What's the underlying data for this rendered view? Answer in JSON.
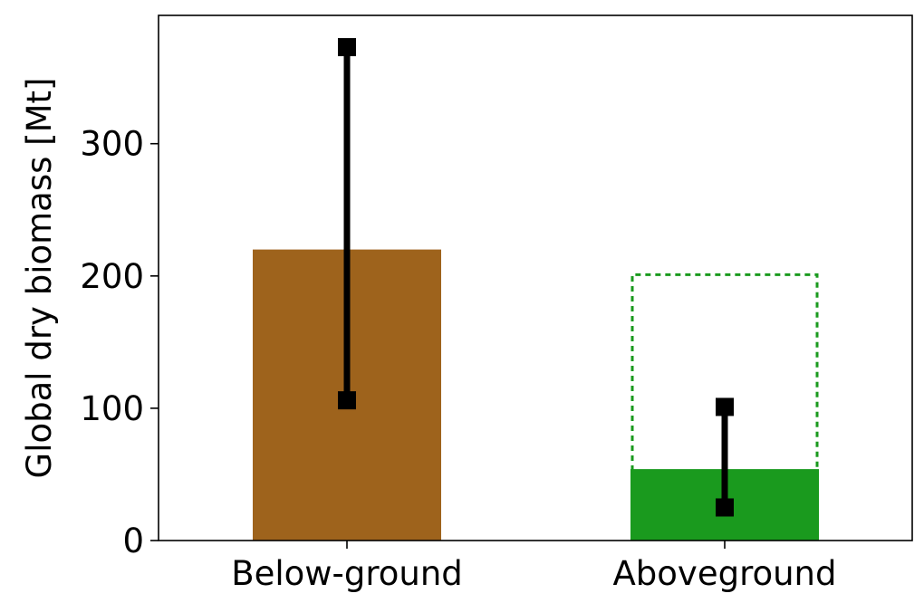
{
  "chart_data": {
    "type": "bar",
    "title": "",
    "xlabel": "",
    "ylabel": "Global dry biomass [Mt]",
    "ylim": [
      0,
      397
    ],
    "yticks": [
      0,
      100,
      200,
      300
    ],
    "categories": [
      "Below-ground",
      "Aboveground"
    ],
    "values": [
      220,
      54
    ],
    "bar_colors": [
      "#9e631c",
      "#1a9a1e"
    ],
    "error_ranges": [
      {
        "low": 106,
        "high": 373
      },
      {
        "low": 25,
        "high": 101
      }
    ],
    "outline_bar": {
      "category": "Aboveground",
      "value": 201,
      "color": "#1a9a1e",
      "style": "dotted"
    },
    "grid": false,
    "legend": "none"
  }
}
